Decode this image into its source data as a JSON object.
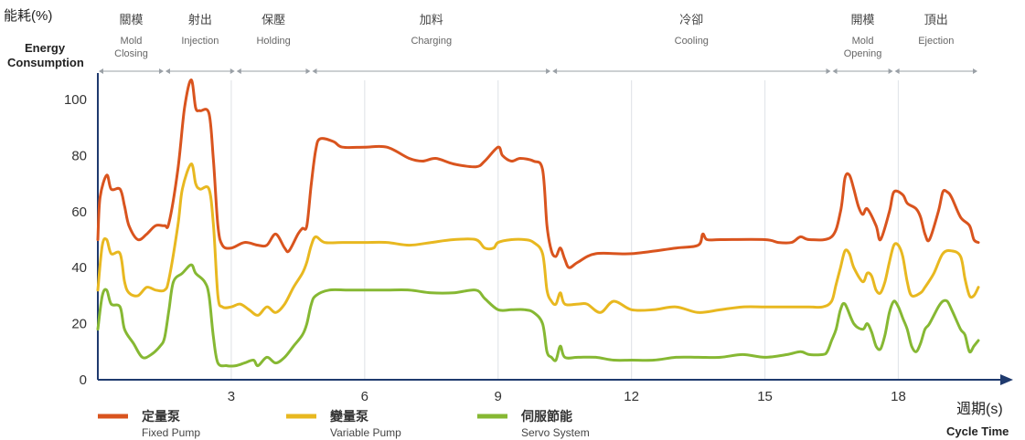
{
  "chart_data": {
    "type": "line",
    "ylabel_zh": "能耗(%)",
    "ylabel_en": [
      "Energy",
      "Consumption"
    ],
    "xlabel_zh": "週期(s)",
    "xlabel_en": "Cycle Time",
    "xlim": [
      0,
      19.8
    ],
    "ylim": [
      0,
      105
    ],
    "x_ticks": [
      3,
      6,
      9,
      12,
      15,
      18
    ],
    "y_ticks": [
      0,
      20,
      40,
      60,
      80,
      100
    ],
    "phases": [
      {
        "zh": "關模",
        "en": [
          "Mold",
          "Closing"
        ],
        "start": 0,
        "end": 1.5
      },
      {
        "zh": "射出",
        "en": [
          "Injection"
        ],
        "start": 1.5,
        "end": 3.1
      },
      {
        "zh": "保壓",
        "en": [
          "Holding"
        ],
        "start": 3.1,
        "end": 4.8
      },
      {
        "zh": "加料",
        "en": [
          "Charging"
        ],
        "start": 4.8,
        "end": 10.2
      },
      {
        "zh": "冷卻",
        "en": [
          "Cooling"
        ],
        "start": 10.2,
        "end": 16.5
      },
      {
        "zh": "開模",
        "en": [
          "Mold",
          "Opening"
        ],
        "start": 16.5,
        "end": 17.9
      },
      {
        "zh": "頂出",
        "en": [
          "Ejection"
        ],
        "start": 17.9,
        "end": 19.8
      }
    ],
    "series": [
      {
        "name": "定量泵",
        "name_en": "Fixed Pump",
        "color": "#d9541e",
        "points": [
          [
            0,
            50
          ],
          [
            0.05,
            65
          ],
          [
            0.2,
            73
          ],
          [
            0.3,
            68
          ],
          [
            0.5,
            68
          ],
          [
            0.6,
            62
          ],
          [
            0.7,
            55
          ],
          [
            0.9,
            50
          ],
          [
            1.1,
            52
          ],
          [
            1.3,
            55
          ],
          [
            1.5,
            55
          ],
          [
            1.6,
            56
          ],
          [
            1.8,
            75
          ],
          [
            1.95,
            97
          ],
          [
            2.1,
            107
          ],
          [
            2.2,
            97
          ],
          [
            2.3,
            96
          ],
          [
            2.5,
            95
          ],
          [
            2.6,
            78
          ],
          [
            2.7,
            55
          ],
          [
            2.8,
            48
          ],
          [
            3.0,
            47
          ],
          [
            3.3,
            49
          ],
          [
            3.6,
            48
          ],
          [
            3.8,
            48
          ],
          [
            4.0,
            52
          ],
          [
            4.2,
            47
          ],
          [
            4.3,
            46
          ],
          [
            4.5,
            52
          ],
          [
            4.6,
            54
          ],
          [
            4.7,
            55
          ],
          [
            4.8,
            70
          ],
          [
            4.9,
            82
          ],
          [
            5.0,
            86
          ],
          [
            5.3,
            85
          ],
          [
            5.5,
            83
          ],
          [
            6.0,
            83
          ],
          [
            6.5,
            83
          ],
          [
            7.0,
            79
          ],
          [
            7.3,
            78
          ],
          [
            7.6,
            79
          ],
          [
            8.0,
            77
          ],
          [
            8.5,
            76
          ],
          [
            8.7,
            78
          ],
          [
            9.0,
            83
          ],
          [
            9.1,
            80
          ],
          [
            9.3,
            78
          ],
          [
            9.5,
            79
          ],
          [
            9.8,
            78
          ],
          [
            10.0,
            75
          ],
          [
            10.1,
            55
          ],
          [
            10.2,
            46
          ],
          [
            10.3,
            44
          ],
          [
            10.4,
            47
          ],
          [
            10.5,
            43
          ],
          [
            10.6,
            40
          ],
          [
            10.8,
            42
          ],
          [
            11.2,
            45
          ],
          [
            12.0,
            45
          ],
          [
            13.0,
            47
          ],
          [
            13.5,
            48
          ],
          [
            13.6,
            52
          ],
          [
            13.7,
            50
          ],
          [
            14.0,
            50
          ],
          [
            15.0,
            50
          ],
          [
            15.3,
            49
          ],
          [
            15.6,
            49
          ],
          [
            15.8,
            51
          ],
          [
            16.0,
            50
          ],
          [
            16.5,
            51
          ],
          [
            16.7,
            60
          ],
          [
            16.8,
            72
          ],
          [
            16.9,
            73
          ],
          [
            17.0,
            68
          ],
          [
            17.1,
            62
          ],
          [
            17.2,
            59
          ],
          [
            17.3,
            61
          ],
          [
            17.5,
            55
          ],
          [
            17.6,
            50
          ],
          [
            17.8,
            60
          ],
          [
            17.9,
            67
          ],
          [
            18.1,
            66
          ],
          [
            18.2,
            63
          ],
          [
            18.4,
            61
          ],
          [
            18.5,
            58
          ],
          [
            18.6,
            52
          ],
          [
            18.7,
            50
          ],
          [
            18.9,
            60
          ],
          [
            19.0,
            67
          ],
          [
            19.1,
            67
          ],
          [
            19.2,
            65
          ],
          [
            19.4,
            58
          ],
          [
            19.6,
            55
          ],
          [
            19.7,
            50
          ],
          [
            19.8,
            49
          ]
        ]
      },
      {
        "name": "變量泵",
        "name_en": "Variable Pump",
        "color": "#e8b820",
        "points": [
          [
            0,
            32
          ],
          [
            0.1,
            48
          ],
          [
            0.2,
            50
          ],
          [
            0.3,
            45
          ],
          [
            0.5,
            45
          ],
          [
            0.6,
            35
          ],
          [
            0.7,
            31
          ],
          [
            0.9,
            30
          ],
          [
            1.1,
            33
          ],
          [
            1.3,
            32
          ],
          [
            1.5,
            32
          ],
          [
            1.6,
            36
          ],
          [
            1.8,
            55
          ],
          [
            1.9,
            68
          ],
          [
            2.1,
            77
          ],
          [
            2.2,
            70
          ],
          [
            2.3,
            68
          ],
          [
            2.5,
            68
          ],
          [
            2.6,
            55
          ],
          [
            2.7,
            30
          ],
          [
            2.8,
            26
          ],
          [
            3.0,
            26
          ],
          [
            3.2,
            27
          ],
          [
            3.4,
            25
          ],
          [
            3.6,
            23
          ],
          [
            3.8,
            26
          ],
          [
            4.0,
            24
          ],
          [
            4.2,
            27
          ],
          [
            4.4,
            33
          ],
          [
            4.6,
            38
          ],
          [
            4.7,
            42
          ],
          [
            4.8,
            48
          ],
          [
            4.9,
            51
          ],
          [
            5.1,
            49
          ],
          [
            5.5,
            49
          ],
          [
            6.0,
            49
          ],
          [
            6.5,
            49
          ],
          [
            7.0,
            48
          ],
          [
            7.5,
            49
          ],
          [
            8.0,
            50
          ],
          [
            8.5,
            50
          ],
          [
            8.7,
            47
          ],
          [
            8.9,
            47
          ],
          [
            9.0,
            49
          ],
          [
            9.3,
            50
          ],
          [
            9.6,
            50
          ],
          [
            9.8,
            49
          ],
          [
            10.0,
            45
          ],
          [
            10.1,
            32
          ],
          [
            10.2,
            28
          ],
          [
            10.3,
            27
          ],
          [
            10.4,
            31
          ],
          [
            10.5,
            27
          ],
          [
            10.8,
            27
          ],
          [
            11.0,
            27
          ],
          [
            11.3,
            24
          ],
          [
            11.6,
            28
          ],
          [
            12.0,
            25
          ],
          [
            12.5,
            25
          ],
          [
            13.0,
            26
          ],
          [
            13.5,
            24
          ],
          [
            14.0,
            25
          ],
          [
            14.5,
            26
          ],
          [
            15.0,
            26
          ],
          [
            15.5,
            26
          ],
          [
            16.0,
            26
          ],
          [
            16.3,
            26
          ],
          [
            16.5,
            28
          ],
          [
            16.6,
            34
          ],
          [
            16.7,
            40
          ],
          [
            16.8,
            46
          ],
          [
            16.9,
            45
          ],
          [
            17.0,
            40
          ],
          [
            17.2,
            35
          ],
          [
            17.3,
            38
          ],
          [
            17.4,
            37
          ],
          [
            17.5,
            32
          ],
          [
            17.6,
            31
          ],
          [
            17.7,
            35
          ],
          [
            17.8,
            42
          ],
          [
            17.9,
            48
          ],
          [
            18.0,
            48
          ],
          [
            18.1,
            44
          ],
          [
            18.2,
            35
          ],
          [
            18.3,
            30
          ],
          [
            18.5,
            31
          ],
          [
            18.6,
            33
          ],
          [
            18.8,
            38
          ],
          [
            19.0,
            45
          ],
          [
            19.2,
            46
          ],
          [
            19.4,
            44
          ],
          [
            19.5,
            36
          ],
          [
            19.6,
            30
          ],
          [
            19.7,
            30
          ],
          [
            19.8,
            33
          ]
        ]
      },
      {
        "name": "伺服節能",
        "name_en": "Servo System",
        "color": "#86b833",
        "points": [
          [
            0,
            18
          ],
          [
            0.1,
            30
          ],
          [
            0.2,
            32
          ],
          [
            0.3,
            27
          ],
          [
            0.5,
            26
          ],
          [
            0.6,
            18
          ],
          [
            0.8,
            13
          ],
          [
            1.0,
            8
          ],
          [
            1.2,
            9
          ],
          [
            1.4,
            12
          ],
          [
            1.5,
            15
          ],
          [
            1.6,
            25
          ],
          [
            1.7,
            35
          ],
          [
            1.9,
            38
          ],
          [
            2.1,
            41
          ],
          [
            2.2,
            38
          ],
          [
            2.4,
            35
          ],
          [
            2.5,
            30
          ],
          [
            2.6,
            15
          ],
          [
            2.7,
            6
          ],
          [
            2.9,
            5
          ],
          [
            3.1,
            5
          ],
          [
            3.3,
            6
          ],
          [
            3.5,
            7
          ],
          [
            3.6,
            5
          ],
          [
            3.8,
            8
          ],
          [
            4.0,
            6
          ],
          [
            4.2,
            8
          ],
          [
            4.4,
            12
          ],
          [
            4.6,
            16
          ],
          [
            4.7,
            20
          ],
          [
            4.8,
            27
          ],
          [
            4.9,
            30
          ],
          [
            5.2,
            32
          ],
          [
            5.6,
            32
          ],
          [
            6.0,
            32
          ],
          [
            6.5,
            32
          ],
          [
            7.0,
            32
          ],
          [
            7.5,
            31
          ],
          [
            8.0,
            31
          ],
          [
            8.5,
            32
          ],
          [
            8.7,
            29
          ],
          [
            9.0,
            25
          ],
          [
            9.3,
            25
          ],
          [
            9.6,
            25
          ],
          [
            9.8,
            24
          ],
          [
            10.0,
            20
          ],
          [
            10.1,
            10
          ],
          [
            10.2,
            8
          ],
          [
            10.3,
            7
          ],
          [
            10.4,
            12
          ],
          [
            10.5,
            8
          ],
          [
            10.8,
            8
          ],
          [
            11.2,
            8
          ],
          [
            11.6,
            7
          ],
          [
            12.0,
            7
          ],
          [
            12.5,
            7
          ],
          [
            13.0,
            8
          ],
          [
            13.5,
            8
          ],
          [
            14.0,
            8
          ],
          [
            14.5,
            9
          ],
          [
            15.0,
            8
          ],
          [
            15.5,
            9
          ],
          [
            15.8,
            10
          ],
          [
            16.0,
            9
          ],
          [
            16.3,
            9
          ],
          [
            16.4,
            10
          ],
          [
            16.5,
            14
          ],
          [
            16.6,
            18
          ],
          [
            16.7,
            25
          ],
          [
            16.8,
            27
          ],
          [
            17.0,
            20
          ],
          [
            17.2,
            18
          ],
          [
            17.3,
            20
          ],
          [
            17.4,
            17
          ],
          [
            17.5,
            12
          ],
          [
            17.6,
            11
          ],
          [
            17.7,
            16
          ],
          [
            17.8,
            24
          ],
          [
            17.9,
            28
          ],
          [
            18.0,
            26
          ],
          [
            18.1,
            22
          ],
          [
            18.2,
            18
          ],
          [
            18.3,
            12
          ],
          [
            18.4,
            10
          ],
          [
            18.5,
            13
          ],
          [
            18.6,
            18
          ],
          [
            18.7,
            20
          ],
          [
            18.9,
            26
          ],
          [
            19.0,
            28
          ],
          [
            19.1,
            28
          ],
          [
            19.2,
            25
          ],
          [
            19.4,
            18
          ],
          [
            19.5,
            16
          ],
          [
            19.6,
            10
          ],
          [
            19.7,
            12
          ],
          [
            19.8,
            14
          ]
        ]
      }
    ]
  }
}
